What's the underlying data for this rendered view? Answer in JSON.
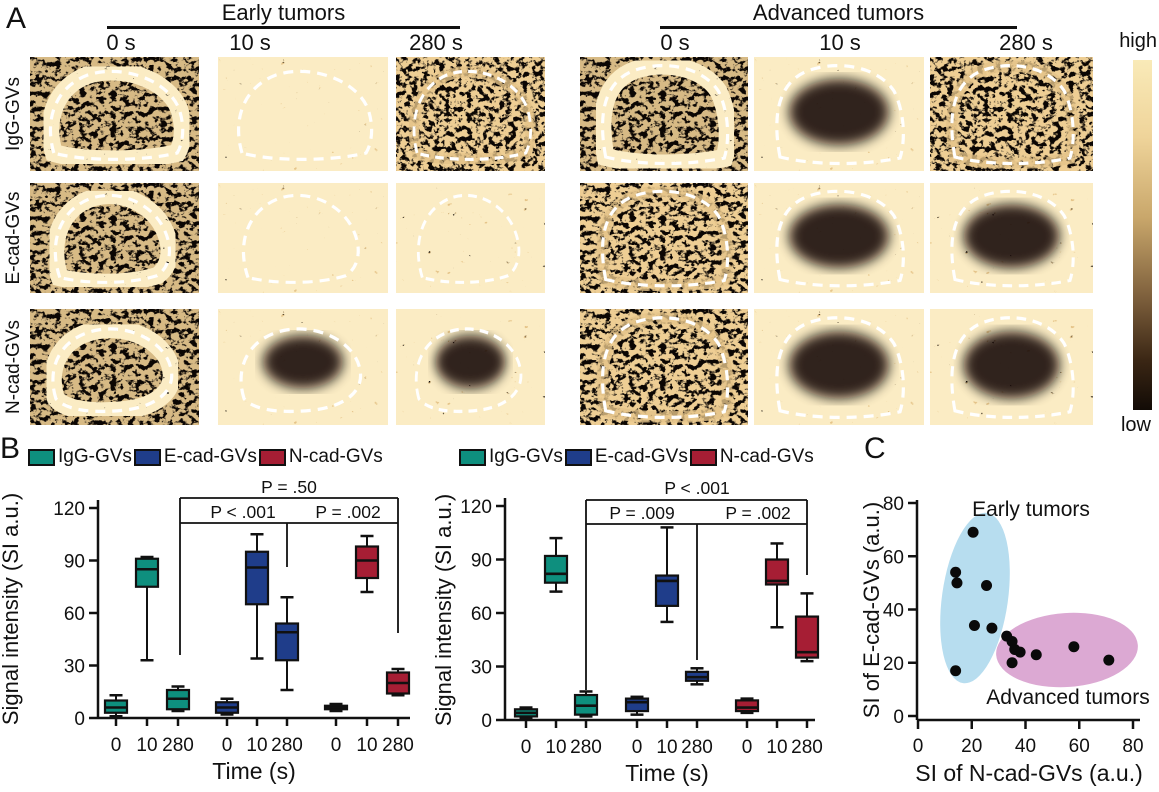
{
  "panelA": {
    "label": "A",
    "groups": [
      {
        "label": "Early tumors",
        "times": [
          "0 s",
          "10 s",
          "280 s"
        ]
      },
      {
        "label": "Advanced tumors",
        "times": [
          "0 s",
          "10 s",
          "280 s"
        ]
      }
    ],
    "row_labels": [
      "IgG-GVs",
      "E-cad-GVs",
      "N-cad-GVs"
    ],
    "colorbar": {
      "top_label": "high",
      "bottom_label": "low",
      "gradient": [
        "#F9EAB8",
        "#C9A76B",
        "#3A2614",
        "#120B06"
      ]
    },
    "tiles": [
      {
        "row": "IgG-GVs",
        "group": "Early tumors",
        "time": "0 s",
        "appearance": "rim"
      },
      {
        "row": "IgG-GVs",
        "group": "Early tumors",
        "time": "10 s",
        "appearance": "bright"
      },
      {
        "row": "IgG-GVs",
        "group": "Early tumors",
        "time": "280 s",
        "appearance": "dark"
      },
      {
        "row": "IgG-GVs",
        "group": "Advanced tumors",
        "time": "0 s",
        "appearance": "rim"
      },
      {
        "row": "IgG-GVs",
        "group": "Advanced tumors",
        "time": "10 s",
        "appearance": "ring"
      },
      {
        "row": "IgG-GVs",
        "group": "Advanced tumors",
        "time": "280 s",
        "appearance": "dark"
      },
      {
        "row": "E-cad-GVs",
        "group": "Early tumors",
        "time": "0 s",
        "appearance": "rim"
      },
      {
        "row": "E-cad-GVs",
        "group": "Early tumors",
        "time": "10 s",
        "appearance": "bright"
      },
      {
        "row": "E-cad-GVs",
        "group": "Early tumors",
        "time": "280 s",
        "appearance": "bright"
      },
      {
        "row": "E-cad-GVs",
        "group": "Advanced tumors",
        "time": "0 s",
        "appearance": "dark"
      },
      {
        "row": "E-cad-GVs",
        "group": "Advanced tumors",
        "time": "10 s",
        "appearance": "ring"
      },
      {
        "row": "E-cad-GVs",
        "group": "Advanced tumors",
        "time": "280 s",
        "appearance": "ring"
      },
      {
        "row": "N-cad-GVs",
        "group": "Early tumors",
        "time": "0 s",
        "appearance": "rim"
      },
      {
        "row": "N-cad-GVs",
        "group": "Early tumors",
        "time": "10 s",
        "appearance": "ring"
      },
      {
        "row": "N-cad-GVs",
        "group": "Early tumors",
        "time": "280 s",
        "appearance": "ring"
      },
      {
        "row": "N-cad-GVs",
        "group": "Advanced tumors",
        "time": "0 s",
        "appearance": "dark"
      },
      {
        "row": "N-cad-GVs",
        "group": "Advanced tumors",
        "time": "10 s",
        "appearance": "ring"
      },
      {
        "row": "N-cad-GVs",
        "group": "Advanced tumors",
        "time": "280 s",
        "appearance": "ring"
      }
    ]
  },
  "panelB": {
    "label": "B",
    "legend": [
      {
        "label": "IgG-GVs",
        "color": "#0E8F7E"
      },
      {
        "label": "E-cad-GVs",
        "color": "#1F3D8A"
      },
      {
        "label": "N-cad-GVs",
        "color": "#A61E34"
      }
    ]
  },
  "panelC": {
    "label": "C"
  },
  "chart_data": [
    {
      "type": "box",
      "panel": "B-left",
      "xlabel": "Time (s)",
      "ylabel": "Signal intensity (SI a.u.)",
      "ylim": [
        0,
        120
      ],
      "yticks": [
        0,
        30,
        60,
        90,
        120
      ],
      "categories": [
        "0",
        "10",
        "280"
      ],
      "series": [
        {
          "name": "IgG-GVs",
          "color": "#0E8F7E",
          "boxes": [
            {
              "lo": 1,
              "q1": 3,
              "med": 6,
              "q3": 10,
              "hi": 13
            },
            {
              "lo": 33,
              "q1": 75,
              "med": 85,
              "q3": 91,
              "hi": 92
            },
            {
              "lo": 4,
              "q1": 5,
              "med": 11,
              "q3": 16,
              "hi": 18
            }
          ]
        },
        {
          "name": "E-cad-GVs",
          "color": "#1F3D8A",
          "boxes": [
            {
              "lo": 2,
              "q1": 3,
              "med": 6,
              "q3": 9,
              "hi": 11
            },
            {
              "lo": 34,
              "q1": 65,
              "med": 86,
              "q3": 95,
              "hi": 105
            },
            {
              "lo": 16,
              "q1": 33,
              "med": 49,
              "q3": 54,
              "hi": 69
            }
          ]
        },
        {
          "name": "N-cad-GVs",
          "color": "#A61E34",
          "boxes": [
            {
              "lo": 4,
              "q1": 5,
              "med": 6,
              "q3": 7,
              "hi": 8
            },
            {
              "lo": 72,
              "q1": 80,
              "med": 90,
              "q3": 98,
              "hi": 104
            },
            {
              "lo": 13,
              "q1": 14,
              "med": 20,
              "q3": 26,
              "hi": 28
            }
          ]
        }
      ],
      "pvalues": [
        "P = .50",
        "P < .001",
        "P = .002"
      ]
    },
    {
      "type": "box",
      "panel": "B-right",
      "xlabel": "Time (s)",
      "ylabel": "Signal intensity (SI a.u.)",
      "ylim": [
        0,
        120
      ],
      "yticks": [
        0,
        30,
        60,
        90,
        120
      ],
      "categories": [
        "0",
        "10",
        "280"
      ],
      "series": [
        {
          "name": "IgG-GVs",
          "color": "#0E8F7E",
          "boxes": [
            {
              "lo": 1,
              "q1": 2,
              "med": 4,
              "q3": 6,
              "hi": 7
            },
            {
              "lo": 72,
              "q1": 77,
              "med": 82,
              "q3": 92,
              "hi": 102
            },
            {
              "lo": 2,
              "q1": 3,
              "med": 8,
              "q3": 14,
              "hi": 16
            }
          ]
        },
        {
          "name": "E-cad-GVs",
          "color": "#1F3D8A",
          "boxes": [
            {
              "lo": 3,
              "q1": 5,
              "med": 10,
              "q3": 12,
              "hi": 13
            },
            {
              "lo": 55,
              "q1": 64,
              "med": 78,
              "q3": 81,
              "hi": 108
            },
            {
              "lo": 20,
              "q1": 22,
              "med": 24,
              "q3": 27,
              "hi": 29
            }
          ]
        },
        {
          "name": "N-cad-GVs",
          "color": "#A61E34",
          "boxes": [
            {
              "lo": 4,
              "q1": 5,
              "med": 7,
              "q3": 11,
              "hi": 12
            },
            {
              "lo": 52,
              "q1": 76,
              "med": 78,
              "q3": 90,
              "hi": 99
            },
            {
              "lo": 33,
              "q1": 35,
              "med": 38,
              "q3": 58,
              "hi": 71
            }
          ]
        }
      ],
      "pvalues": [
        "P < .001",
        "P = .009",
        "P = .002"
      ]
    },
    {
      "type": "scatter",
      "panel": "C",
      "xlabel": "SI of N-cad-GVs (a.u.)",
      "ylabel": "SI of E-cad-GVs (a.u.)",
      "xlim": [
        0,
        80
      ],
      "ylim": [
        0,
        80
      ],
      "xticks": [
        0,
        20,
        40,
        60,
        80
      ],
      "yticks": [
        0,
        20,
        40,
        60,
        80
      ],
      "clusters": [
        {
          "label": "Early tumors",
          "color": "#B7DDEF"
        },
        {
          "label": "Advanced tumors",
          "color": "#DCA9D3"
        }
      ],
      "points": [
        [
          20.5,
          69
        ],
        [
          14,
          54
        ],
        [
          14.5,
          50
        ],
        [
          25.5,
          49
        ],
        [
          21,
          34
        ],
        [
          27.5,
          33
        ],
        [
          33,
          30
        ],
        [
          35,
          28
        ],
        [
          36,
          25
        ],
        [
          38,
          24
        ],
        [
          44,
          23
        ],
        [
          35,
          20
        ],
        [
          58,
          26
        ],
        [
          71,
          21
        ],
        [
          14,
          17
        ]
      ]
    }
  ]
}
